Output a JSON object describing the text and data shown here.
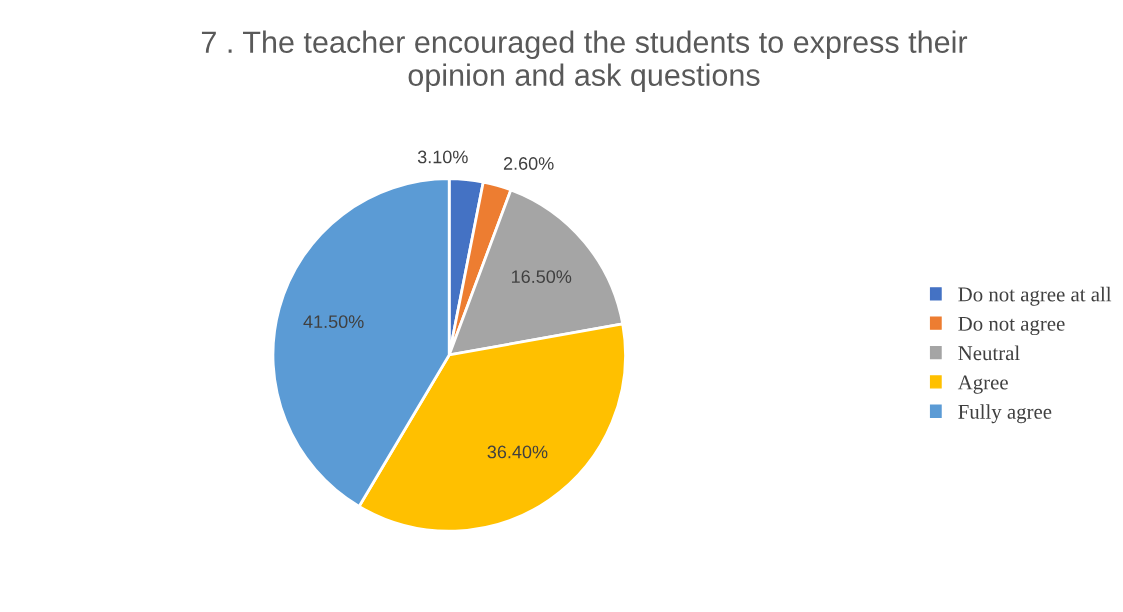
{
  "chart_data": {
    "type": "pie",
    "title": "7 . The teacher encouraged the students to express their\nopinion and ask questions",
    "categories": [
      "Do not agree at all",
      "Do not agree",
      "Neutral",
      "Agree",
      "Fully agree"
    ],
    "values": [
      3.1,
      2.6,
      16.5,
      36.4,
      41.5
    ],
    "value_labels": [
      "3.10%",
      "2.60%",
      "16.50%",
      "36.40%",
      "41.50%"
    ],
    "colors": [
      "#4472c4",
      "#ed7d31",
      "#a5a5a5",
      "#ffc000",
      "#5b9bd5"
    ],
    "legend": "right"
  }
}
